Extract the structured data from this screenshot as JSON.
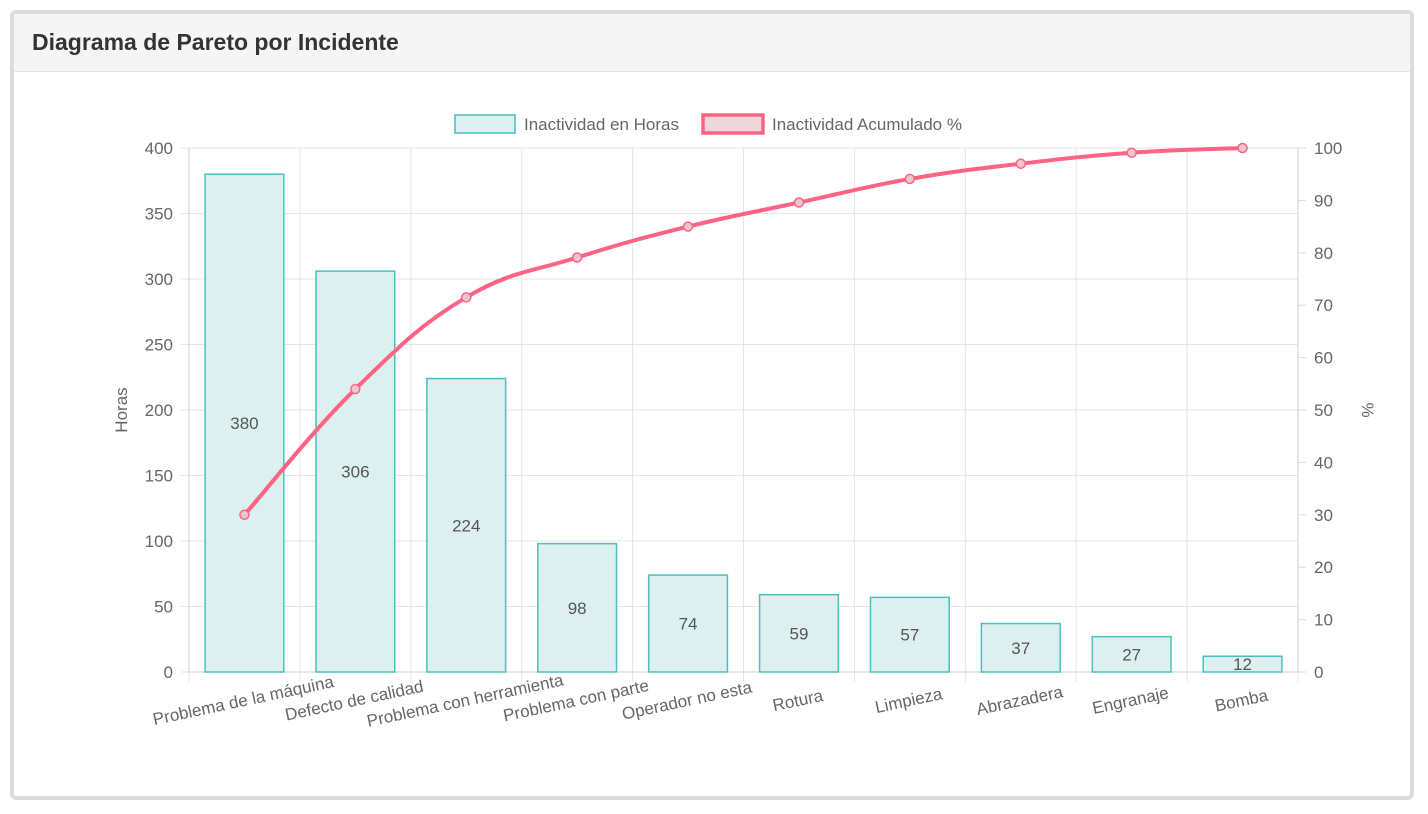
{
  "panel": {
    "title": "Diagrama de Pareto por Incidente"
  },
  "chart_data": {
    "type": "bar",
    "categories": [
      "Problema de la máquina",
      "Defecto de calidad",
      "Problema con herramienta",
      "Problema con parte",
      "Operador no esta",
      "Rotura",
      "Limpieza",
      "Abrazadera",
      "Engranaje",
      "Bomba"
    ],
    "series": [
      {
        "name": "Inactividad en Horas",
        "type": "bar",
        "axis": "left",
        "values": [
          380,
          306,
          224,
          98,
          74,
          59,
          57,
          37,
          27,
          12
        ],
        "data_labels": [
          "380",
          "306",
          "224",
          "98",
          "74",
          "59",
          "57",
          "37",
          "27",
          "12"
        ],
        "fill": "#dcf0ef",
        "stroke": "#4bc0c0"
      },
      {
        "name": "Inactividad Acumulado %",
        "type": "line",
        "axis": "right",
        "values": [
          30.0,
          54.0,
          71.5,
          79.1,
          85.0,
          89.6,
          94.1,
          97.0,
          99.1,
          100.0
        ],
        "stroke": "#ff6384",
        "point_fill": "#e8c8cc"
      }
    ],
    "ylabel": "Horas",
    "y2label": "%",
    "ylim": [
      0,
      400
    ],
    "y2lim": [
      0,
      100
    ],
    "yticks": [
      "0",
      "50",
      "100",
      "150",
      "200",
      "250",
      "300",
      "350",
      "400"
    ],
    "y2ticks": [
      "0",
      "10",
      "20",
      "30",
      "40",
      "50",
      "60",
      "70",
      "80",
      "90",
      "100"
    ],
    "grid": true,
    "legend": "top-center"
  }
}
